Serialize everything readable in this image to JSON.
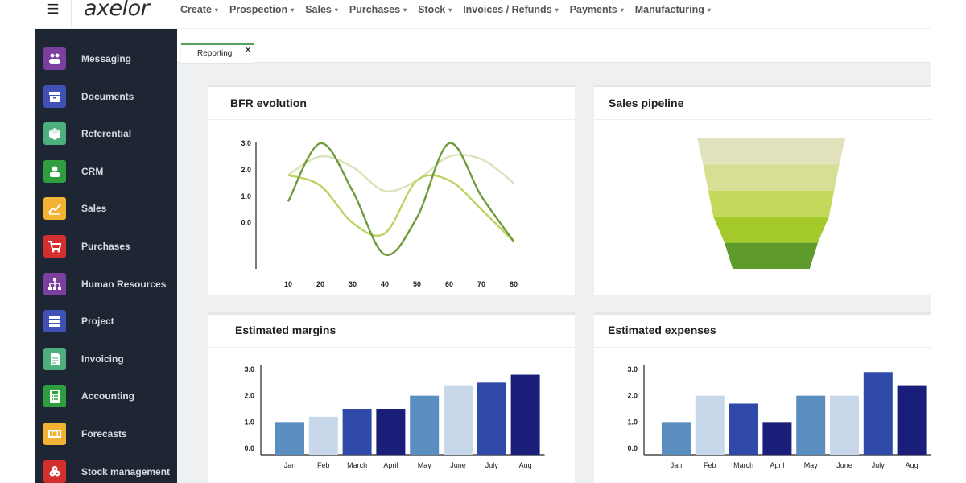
{
  "topbar": {
    "logo_text": "axelor",
    "menu": [
      "Create",
      "Prospection",
      "Sales",
      "Purchases",
      "Stock",
      "Invoices / Refunds",
      "Payments",
      "Manufacturing"
    ]
  },
  "sidebar": {
    "items": [
      {
        "label": "Messaging",
        "icon": "people-icon",
        "color": "#7b3fa0"
      },
      {
        "label": "Documents",
        "icon": "archive-box-icon",
        "color": "#3f51b5"
      },
      {
        "label": "Referential",
        "icon": "cube-icon",
        "color": "#4caf7d"
      },
      {
        "label": "CRM",
        "icon": "user-icon",
        "color": "#2e9e3f"
      },
      {
        "label": "Sales",
        "icon": "line-chart-icon",
        "color": "#f2b234"
      },
      {
        "label": "Purchases",
        "icon": "shopping-cart-icon",
        "color": "#d32f2f"
      },
      {
        "label": "Human Resources",
        "icon": "org-chart-icon",
        "color": "#7b3fa0"
      },
      {
        "label": "Project",
        "icon": "tasks-icon",
        "color": "#3f51b5"
      },
      {
        "label": "Invoicing",
        "icon": "invoice-file-icon",
        "color": "#4caf7d"
      },
      {
        "label": "Accounting",
        "icon": "calculator-icon",
        "color": "#2e9e3f"
      },
      {
        "label": "Forecasts",
        "icon": "money-bill-icon",
        "color": "#f2b234"
      },
      {
        "label": "Stock management",
        "icon": "cubes-icon",
        "color": "#d32f2f"
      }
    ]
  },
  "tabs": [
    {
      "label": "Reporting",
      "close": "×"
    }
  ],
  "panels": {
    "bfr": {
      "title": "BFR evolution"
    },
    "pipeline": {
      "title": "Sales pipeline"
    },
    "margins": {
      "title": "Estimated margins"
    },
    "expenses": {
      "title": "Estimated expenses"
    }
  },
  "chart_data": [
    {
      "type": "line",
      "title": "BFR evolution",
      "x": [
        10,
        20,
        30,
        40,
        50,
        60,
        70,
        80
      ],
      "y_ticks": [
        0.0,
        1.0,
        2.0,
        3.0
      ],
      "ylim": [
        -1.5,
        3.0
      ],
      "series": [
        {
          "color": "#6f9a3a",
          "values": [
            0.8,
            3.0,
            1.2,
            -1.2,
            0.2,
            3.0,
            1.0,
            -0.7
          ]
        },
        {
          "color": "#b9d462",
          "values": [
            1.8,
            1.4,
            0.0,
            -0.4,
            1.6,
            1.6,
            0.5,
            -0.7
          ]
        },
        {
          "color": "#d7e3b8",
          "values": [
            1.8,
            2.5,
            2.1,
            1.2,
            1.6,
            2.5,
            2.4,
            1.5
          ]
        }
      ]
    },
    {
      "type": "funnel",
      "title": "Sales pipeline",
      "stages": [
        {
          "value": 100,
          "color": "#e3e2bf"
        },
        {
          "value": 92,
          "color": "#d6df93"
        },
        {
          "value": 85,
          "color": "#c4d95c"
        },
        {
          "value": 78,
          "color": "#a3c92a"
        },
        {
          "value": 63,
          "color": "#5f9a2c"
        }
      ]
    },
    {
      "type": "bar",
      "title": "Estimated margins",
      "categories": [
        "Jan",
        "Feb",
        "March",
        "April",
        "May",
        "June",
        "July",
        "Aug"
      ],
      "values": [
        1.0,
        1.2,
        1.5,
        1.5,
        2.0,
        2.4,
        2.5,
        2.8
      ],
      "colors": [
        "#5b8ec0",
        "#c9d7ea",
        "#2f4aa8",
        "#1a1d7a",
        "#5b8ec0",
        "#c9d7ea",
        "#2f4aa8",
        "#1a1d7a"
      ],
      "y_ticks": [
        0.0,
        1.0,
        2.0,
        3.0
      ],
      "ylim": [
        0,
        3.0
      ]
    },
    {
      "type": "bar",
      "title": "Estimated expenses",
      "categories": [
        "Jan",
        "Feb",
        "March",
        "April",
        "May",
        "June",
        "July",
        "Aug"
      ],
      "values": [
        1.0,
        2.0,
        1.7,
        1.0,
        2.0,
        2.0,
        2.9,
        2.4
      ],
      "colors": [
        "#5b8ec0",
        "#c9d7ea",
        "#2f4aa8",
        "#1a1d7a",
        "#5b8ec0",
        "#c9d7ea",
        "#2f4aa8",
        "#1a1d7a"
      ],
      "y_ticks": [
        0.0,
        1.0,
        2.0,
        3.0
      ],
      "ylim": [
        0,
        3.0
      ]
    }
  ]
}
